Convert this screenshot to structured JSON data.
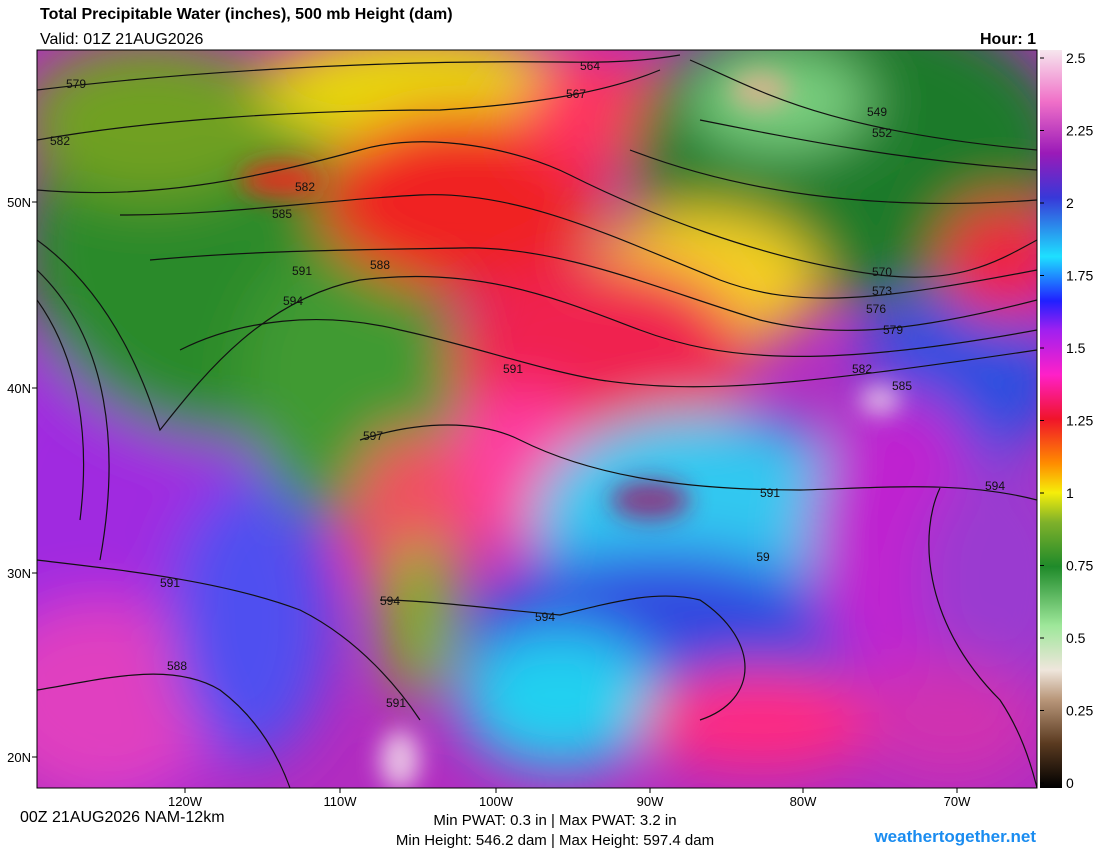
{
  "header": {
    "title": "Total Precipitable Water (inches), 500 mb Height (dam)",
    "valid": "Valid: 01Z 21AUG2026",
    "hour": "Hour: 1"
  },
  "colorbar": {
    "ticks": [
      2.5,
      2.25,
      2,
      1.75,
      1.5,
      1.25,
      1,
      0.75,
      0.5,
      0.25,
      0
    ]
  },
  "latitude_labels": [
    "50N",
    "40N",
    "30N",
    "20N"
  ],
  "longitude_labels": [
    "120W",
    "110W",
    "100W",
    "90W",
    "80W",
    "70W"
  ],
  "contour_labels": [
    "579",
    "582",
    "564",
    "567",
    "549",
    "552",
    "582",
    "585",
    "588",
    "591",
    "594",
    "570",
    "573",
    "576",
    "579",
    "582",
    "585",
    "591",
    "597",
    "591",
    "594",
    "59",
    "594",
    "594",
    "591",
    "588",
    "591"
  ],
  "footer": {
    "run": "00Z 21AUG2026 NAM-12km",
    "pwat": "Min PWAT:   0.3 in | Max PWAT:   3.2 in",
    "height": "Min Height: 546.2 dam | Max Height: 597.4 dam",
    "site": "weathertogether.net"
  }
}
